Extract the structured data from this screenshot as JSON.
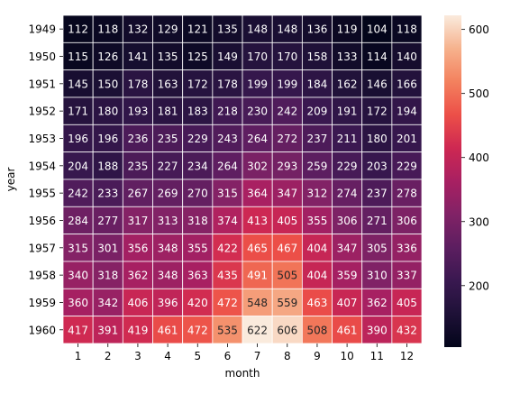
{
  "chart_data": {
    "type": "heatmap",
    "xlabel": "month",
    "ylabel": "year",
    "x_categories": [
      "1",
      "2",
      "3",
      "4",
      "5",
      "6",
      "7",
      "8",
      "9",
      "10",
      "11",
      "12"
    ],
    "y_categories": [
      "1949",
      "1950",
      "1951",
      "1952",
      "1953",
      "1954",
      "1955",
      "1956",
      "1957",
      "1958",
      "1959",
      "1960"
    ],
    "values": [
      [
        112,
        118,
        132,
        129,
        121,
        135,
        148,
        148,
        136,
        119,
        104,
        118
      ],
      [
        115,
        126,
        141,
        135,
        125,
        149,
        170,
        170,
        158,
        133,
        114,
        140
      ],
      [
        145,
        150,
        178,
        163,
        172,
        178,
        199,
        199,
        184,
        162,
        146,
        166
      ],
      [
        171,
        180,
        193,
        181,
        183,
        218,
        230,
        242,
        209,
        191,
        172,
        194
      ],
      [
        196,
        196,
        236,
        235,
        229,
        243,
        264,
        272,
        237,
        211,
        180,
        201
      ],
      [
        204,
        188,
        235,
        227,
        234,
        264,
        302,
        293,
        259,
        229,
        203,
        229
      ],
      [
        242,
        233,
        267,
        269,
        270,
        315,
        364,
        347,
        312,
        274,
        237,
        278
      ],
      [
        284,
        277,
        317,
        313,
        318,
        374,
        413,
        405,
        355,
        306,
        271,
        306
      ],
      [
        315,
        301,
        356,
        348,
        355,
        422,
        465,
        467,
        404,
        347,
        305,
        336
      ],
      [
        340,
        318,
        362,
        348,
        363,
        435,
        491,
        505,
        404,
        359,
        310,
        337
      ],
      [
        360,
        342,
        406,
        396,
        420,
        472,
        548,
        559,
        463,
        407,
        362,
        405
      ],
      [
        417,
        391,
        419,
        461,
        472,
        535,
        622,
        606,
        508,
        461,
        390,
        432
      ]
    ],
    "colormap": "rocket",
    "vmin": 104,
    "vmax": 622,
    "colorbar_ticks": [
      200,
      300,
      400,
      500,
      600
    ],
    "annotations": true,
    "grid": false
  }
}
